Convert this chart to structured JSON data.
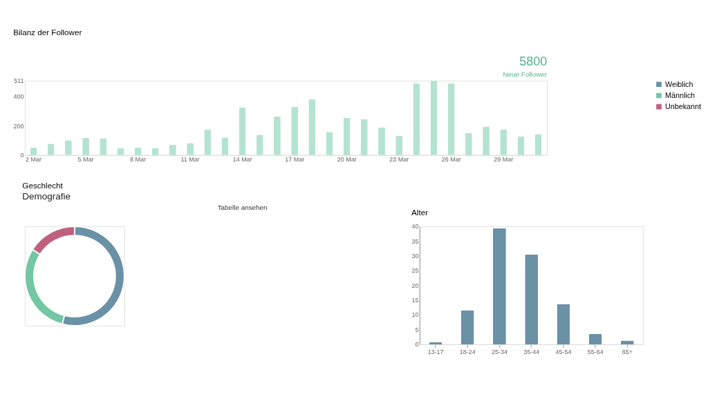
{
  "chart_data": [
    {
      "type": "bar",
      "title": "Bilanz der Follower",
      "annotations": [
        "5800",
        "Neue Follower"
      ],
      "categories": [
        "2 Mar",
        null,
        null,
        "5 Mar",
        null,
        null,
        "8 Mar",
        null,
        null,
        "11 Mar",
        null,
        null,
        "14 Mar",
        null,
        null,
        "17 Mar",
        null,
        null,
        "20 Mar",
        null,
        null,
        "23 Mar",
        null,
        null,
        "26 Mar",
        null,
        null,
        "29 Mar",
        null,
        null
      ],
      "values": [
        52,
        78,
        102,
        117,
        116,
        47,
        52,
        48,
        71,
        83,
        176,
        121,
        326,
        140,
        265,
        331,
        383,
        159,
        257,
        248,
        191,
        133,
        491,
        511,
        491,
        150,
        197,
        176,
        129,
        145
      ],
      "color": "#b5e3d1",
      "ylim": [
        0,
        511
      ],
      "yticks": [
        0,
        200,
        400,
        511
      ],
      "grid": false
    },
    {
      "type": "donut",
      "title": "Geschlecht",
      "subtitle": "Demografie",
      "annotations": [
        "Tabelle ansehen"
      ],
      "categories": [
        "Weiblich",
        "Männlich",
        "Unbekannt"
      ],
      "values": [
        54,
        30,
        16
      ],
      "colors": [
        "#6a91a6",
        "#74c7a5",
        "#c05f7e"
      ],
      "legend": "right"
    },
    {
      "type": "bar",
      "title": "Alter",
      "categories": [
        "13-17",
        "18-24",
        "25-34",
        "35-44",
        "45-54",
        "55-64",
        "65+"
      ],
      "values": [
        0.7,
        11.6,
        39.4,
        30.5,
        13.7,
        3.5,
        1.3
      ],
      "color": "#6a91a6",
      "ylim": [
        0,
        40
      ],
      "yticks": [
        0,
        5,
        10,
        15,
        20,
        25,
        30,
        35,
        40
      ],
      "grid": false
    }
  ]
}
